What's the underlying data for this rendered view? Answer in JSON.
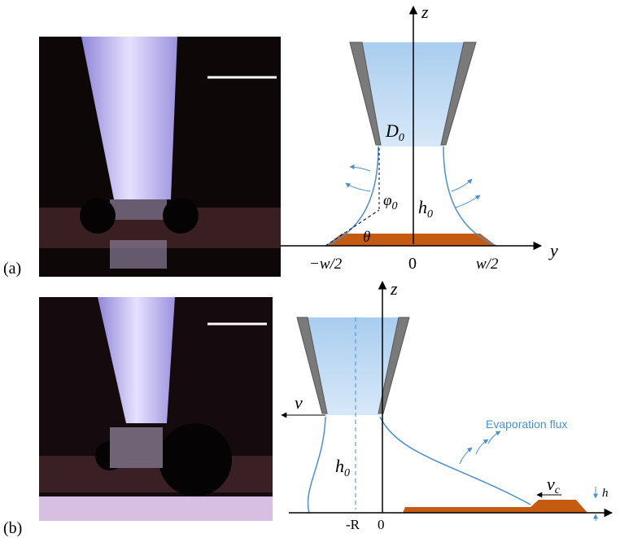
{
  "panel_a": {
    "tag": "(a)",
    "axis_z": "z",
    "axis_y": "y",
    "D0": {
      "text": "D",
      "sub": "0"
    },
    "h0": {
      "text": "h",
      "sub": "0"
    },
    "phi0": {
      "text": "φ",
      "sub": "0"
    },
    "theta": "θ",
    "neg_half_w": "−w/2",
    "origin": "0",
    "half_w": "w/2"
  },
  "panel_b": {
    "tag": "(b)",
    "axis_z": "z",
    "v": "v",
    "h0": {
      "text": "h",
      "sub": "0"
    },
    "flux": "Evaporation flux",
    "vc": {
      "text": "v",
      "sub": "c"
    },
    "h": "h",
    "neg_R": "-R",
    "origin": "0"
  }
}
